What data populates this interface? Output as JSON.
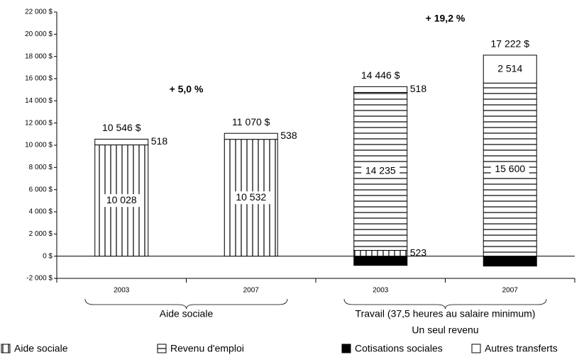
{
  "chart_data": {
    "type": "stacked-bar",
    "categories": [
      "2003",
      "2007",
      "2003",
      "2007"
    ],
    "groups": [
      "Aide sociale",
      "Travail (37,5 heures au salaire minimum)"
    ],
    "group_subtitle": "Un seul revenu",
    "series": [
      {
        "name": "Aide sociale",
        "color": "#000000",
        "pattern": "vertical",
        "values": [
          10028,
          10532,
          523,
          null
        ],
        "value_labels": [
          "10 028",
          "10 532",
          "523",
          null
        ]
      },
      {
        "name": "Revenu d'emploi",
        "color": "#000000",
        "pattern": "horizontal",
        "values": [
          null,
          null,
          14235,
          15600
        ],
        "value_labels": [
          null,
          null,
          "14 235",
          "15 600"
        ]
      },
      {
        "name": "Cotisations sociales",
        "color": "#000000",
        "pattern": "solid",
        "values": [
          null,
          null,
          -830,
          -892
        ]
      },
      {
        "name": "Autres transferts",
        "color": "#000000",
        "pattern": "none",
        "values": [
          518,
          538,
          518,
          2514
        ],
        "value_labels": [
          "518",
          "538",
          "518",
          "2 514"
        ]
      }
    ],
    "totals": {
      "values": [
        10546,
        11070,
        14446,
        17222
      ],
      "value_labels": [
        "10 546 $",
        "11 070 $",
        "14 446 $",
        "17 222 $"
      ]
    },
    "annotations": [
      "+ 5,0 %",
      "+ 19,2 %"
    ],
    "ylim": [
      -2000,
      22000
    ],
    "yticks": [
      {
        "value": -2000,
        "label": "-2 000 $"
      },
      {
        "value": 0,
        "label": "0 $"
      },
      {
        "value": 2000,
        "label": "2 000 $"
      },
      {
        "value": 4000,
        "label": "4 000 $"
      },
      {
        "value": 6000,
        "label": "6 000 $"
      },
      {
        "value": 8000,
        "label": "8 000 $"
      },
      {
        "value": 10000,
        "label": "10 000 $"
      },
      {
        "value": 12000,
        "label": "12 000 $"
      },
      {
        "value": 14000,
        "label": "14 000 $"
      },
      {
        "value": 16000,
        "label": "16 000 $"
      },
      {
        "value": 18000,
        "label": "18 000 $"
      },
      {
        "value": 20000,
        "label": "20 000 $"
      },
      {
        "value": 22000,
        "label": "22 000 $"
      }
    ],
    "legend": "bottom"
  }
}
